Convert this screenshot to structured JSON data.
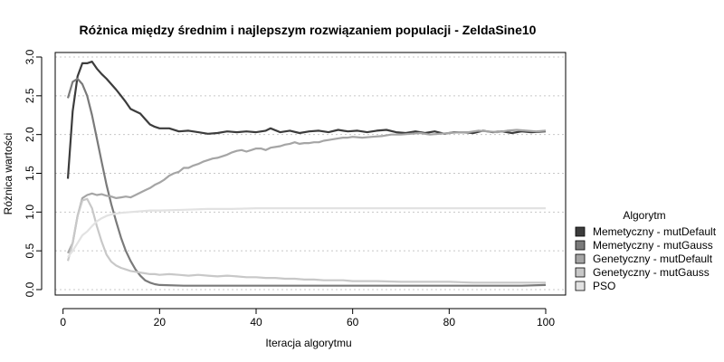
{
  "chart_data": {
    "type": "line",
    "title": "Różnica między średnim i najlepszym rozwiązaniem populacji - ZeldaSine10",
    "xlabel": "Iteracja algorytmu",
    "ylabel": "Różnica wartości",
    "xlim": [
      1,
      100
    ],
    "ylim": [
      0,
      3.0
    ],
    "x_ticks": [
      0,
      20,
      40,
      60,
      80,
      100
    ],
    "x_tick_labels": [
      "0",
      "20",
      "40",
      "60",
      "80",
      "100"
    ],
    "y_ticks": [
      0.0,
      0.5,
      1.0,
      1.5,
      2.0,
      2.5,
      3.0
    ],
    "y_tick_labels": [
      "0.0",
      "0.5",
      "1.0",
      "1.5",
      "2.0",
      "2.5",
      "3.0"
    ],
    "grid": "horizontal-dotted",
    "legend_title": "Algorytm",
    "legend_position": "right",
    "series": [
      {
        "name": "Memetyczny - mutDefault",
        "color": "#3c3c3c",
        "points": [
          [
            1,
            1.43
          ],
          [
            2,
            2.3
          ],
          [
            3,
            2.75
          ],
          [
            4,
            2.92
          ],
          [
            5,
            2.92
          ],
          [
            6,
            2.94
          ],
          [
            7,
            2.85
          ],
          [
            8,
            2.78
          ],
          [
            9,
            2.72
          ],
          [
            10,
            2.65
          ],
          [
            11,
            2.58
          ],
          [
            12,
            2.5
          ],
          [
            13,
            2.42
          ],
          [
            14,
            2.33
          ],
          [
            15,
            2.3
          ],
          [
            16,
            2.27
          ],
          [
            17,
            2.2
          ],
          [
            18,
            2.13
          ],
          [
            19,
            2.1
          ],
          [
            20,
            2.08
          ],
          [
            22,
            2.08
          ],
          [
            24,
            2.04
          ],
          [
            26,
            2.05
          ],
          [
            28,
            2.03
          ],
          [
            30,
            2.01
          ],
          [
            32,
            2.02
          ],
          [
            34,
            2.04
          ],
          [
            36,
            2.03
          ],
          [
            38,
            2.04
          ],
          [
            40,
            2.03
          ],
          [
            42,
            2.05
          ],
          [
            43,
            2.08
          ],
          [
            45,
            2.03
          ],
          [
            47,
            2.05
          ],
          [
            49,
            2.02
          ],
          [
            51,
            2.04
          ],
          [
            53,
            2.05
          ],
          [
            55,
            2.03
          ],
          [
            57,
            2.06
          ],
          [
            59,
            2.04
          ],
          [
            61,
            2.05
          ],
          [
            63,
            2.03
          ],
          [
            65,
            2.05
          ],
          [
            67,
            2.06
          ],
          [
            69,
            2.03
          ],
          [
            71,
            2.02
          ],
          [
            73,
            2.04
          ],
          [
            75,
            2.02
          ],
          [
            77,
            2.04
          ],
          [
            79,
            2.01
          ],
          [
            81,
            2.03
          ],
          [
            83,
            2.03
          ],
          [
            85,
            2.02
          ],
          [
            87,
            2.05
          ],
          [
            89,
            2.03
          ],
          [
            91,
            2.04
          ],
          [
            93,
            2.02
          ],
          [
            95,
            2.04
          ],
          [
            97,
            2.03
          ],
          [
            100,
            2.04
          ]
        ]
      },
      {
        "name": "Memetyczny - mutGauss",
        "color": "#7a7a7a",
        "points": [
          [
            1,
            2.47
          ],
          [
            2,
            2.68
          ],
          [
            3,
            2.72
          ],
          [
            4,
            2.65
          ],
          [
            5,
            2.5
          ],
          [
            6,
            2.25
          ],
          [
            7,
            1.95
          ],
          [
            8,
            1.65
          ],
          [
            9,
            1.35
          ],
          [
            10,
            1.1
          ],
          [
            11,
            0.88
          ],
          [
            12,
            0.67
          ],
          [
            13,
            0.5
          ],
          [
            14,
            0.37
          ],
          [
            15,
            0.26
          ],
          [
            16,
            0.18
          ],
          [
            17,
            0.12
          ],
          [
            18,
            0.09
          ],
          [
            19,
            0.07
          ],
          [
            20,
            0.06
          ],
          [
            25,
            0.05
          ],
          [
            30,
            0.05
          ],
          [
            40,
            0.05
          ],
          [
            50,
            0.05
          ],
          [
            60,
            0.05
          ],
          [
            70,
            0.05
          ],
          [
            80,
            0.05
          ],
          [
            90,
            0.05
          ],
          [
            95,
            0.05
          ],
          [
            100,
            0.06
          ]
        ]
      },
      {
        "name": "Genetyczny - mutDefault",
        "color": "#a5a5a5",
        "points": [
          [
            1,
            0.47
          ],
          [
            2,
            0.6
          ],
          [
            3,
            0.95
          ],
          [
            4,
            1.18
          ],
          [
            5,
            1.22
          ],
          [
            6,
            1.24
          ],
          [
            7,
            1.22
          ],
          [
            8,
            1.23
          ],
          [
            9,
            1.21
          ],
          [
            10,
            1.2
          ],
          [
            11,
            1.18
          ],
          [
            12,
            1.19
          ],
          [
            13,
            1.2
          ],
          [
            14,
            1.19
          ],
          [
            15,
            1.22
          ],
          [
            16,
            1.25
          ],
          [
            17,
            1.28
          ],
          [
            18,
            1.31
          ],
          [
            19,
            1.35
          ],
          [
            20,
            1.38
          ],
          [
            21,
            1.42
          ],
          [
            22,
            1.47
          ],
          [
            23,
            1.5
          ],
          [
            24,
            1.52
          ],
          [
            25,
            1.57
          ],
          [
            26,
            1.57
          ],
          [
            27,
            1.6
          ],
          [
            28,
            1.62
          ],
          [
            29,
            1.65
          ],
          [
            30,
            1.67
          ],
          [
            31,
            1.69
          ],
          [
            32,
            1.7
          ],
          [
            33,
            1.72
          ],
          [
            34,
            1.74
          ],
          [
            35,
            1.77
          ],
          [
            36,
            1.79
          ],
          [
            37,
            1.8
          ],
          [
            38,
            1.78
          ],
          [
            39,
            1.8
          ],
          [
            40,
            1.82
          ],
          [
            41,
            1.82
          ],
          [
            42,
            1.8
          ],
          [
            43,
            1.83
          ],
          [
            44,
            1.84
          ],
          [
            45,
            1.85
          ],
          [
            46,
            1.87
          ],
          [
            47,
            1.88
          ],
          [
            48,
            1.9
          ],
          [
            49,
            1.88
          ],
          [
            50,
            1.89
          ],
          [
            51,
            1.89
          ],
          [
            52,
            1.9
          ],
          [
            53,
            1.9
          ],
          [
            54,
            1.92
          ],
          [
            55,
            1.93
          ],
          [
            56,
            1.94
          ],
          [
            57,
            1.95
          ],
          [
            58,
            1.96
          ],
          [
            59,
            1.96
          ],
          [
            60,
            1.97
          ],
          [
            62,
            1.96
          ],
          [
            64,
            1.97
          ],
          [
            66,
            1.98
          ],
          [
            68,
            2.0
          ],
          [
            70,
            2.0
          ],
          [
            72,
            2.01
          ],
          [
            74,
            2.02
          ],
          [
            76,
            2.0
          ],
          [
            78,
            2.01
          ],
          [
            80,
            2.02
          ],
          [
            82,
            2.03
          ],
          [
            84,
            2.03
          ],
          [
            86,
            2.05
          ],
          [
            88,
            2.04
          ],
          [
            90,
            2.03
          ],
          [
            92,
            2.05
          ],
          [
            94,
            2.06
          ],
          [
            96,
            2.05
          ],
          [
            98,
            2.04
          ],
          [
            100,
            2.05
          ]
        ]
      },
      {
        "name": "Genetyczny - mutGauss",
        "color": "#c8c8c8",
        "points": [
          [
            1,
            0.37
          ],
          [
            2,
            0.6
          ],
          [
            3,
            0.95
          ],
          [
            4,
            1.15
          ],
          [
            5,
            1.17
          ],
          [
            6,
            1.05
          ],
          [
            7,
            0.82
          ],
          [
            8,
            0.62
          ],
          [
            9,
            0.45
          ],
          [
            10,
            0.36
          ],
          [
            11,
            0.31
          ],
          [
            12,
            0.28
          ],
          [
            13,
            0.26
          ],
          [
            14,
            0.24
          ],
          [
            15,
            0.23
          ],
          [
            16,
            0.22
          ],
          [
            17,
            0.21
          ],
          [
            18,
            0.2
          ],
          [
            19,
            0.2
          ],
          [
            20,
            0.19
          ],
          [
            22,
            0.2
          ],
          [
            24,
            0.19
          ],
          [
            26,
            0.18
          ],
          [
            28,
            0.19
          ],
          [
            30,
            0.18
          ],
          [
            32,
            0.17
          ],
          [
            34,
            0.18
          ],
          [
            36,
            0.17
          ],
          [
            38,
            0.16
          ],
          [
            40,
            0.16
          ],
          [
            42,
            0.15
          ],
          [
            44,
            0.15
          ],
          [
            46,
            0.14
          ],
          [
            48,
            0.14
          ],
          [
            50,
            0.13
          ],
          [
            52,
            0.13
          ],
          [
            54,
            0.12
          ],
          [
            56,
            0.12
          ],
          [
            58,
            0.12
          ],
          [
            60,
            0.11
          ],
          [
            65,
            0.11
          ],
          [
            70,
            0.1
          ],
          [
            75,
            0.1
          ],
          [
            80,
            0.1
          ],
          [
            85,
            0.09
          ],
          [
            90,
            0.09
          ],
          [
            95,
            0.09
          ],
          [
            100,
            0.09
          ]
        ]
      },
      {
        "name": "PSO",
        "color": "#e2e2e2",
        "points": [
          [
            1,
            0.42
          ],
          [
            2,
            0.5
          ],
          [
            3,
            0.6
          ],
          [
            4,
            0.7
          ],
          [
            5,
            0.75
          ],
          [
            6,
            0.82
          ],
          [
            7,
            0.88
          ],
          [
            8,
            0.92
          ],
          [
            9,
            0.95
          ],
          [
            10,
            0.97
          ],
          [
            12,
            0.99
          ],
          [
            14,
            1.0
          ],
          [
            16,
            1.01
          ],
          [
            18,
            1.02
          ],
          [
            20,
            1.02
          ],
          [
            25,
            1.03
          ],
          [
            30,
            1.04
          ],
          [
            35,
            1.04
          ],
          [
            40,
            1.05
          ],
          [
            50,
            1.05
          ],
          [
            60,
            1.05
          ],
          [
            70,
            1.05
          ],
          [
            80,
            1.05
          ],
          [
            90,
            1.05
          ],
          [
            100,
            1.05
          ]
        ]
      }
    ]
  }
}
